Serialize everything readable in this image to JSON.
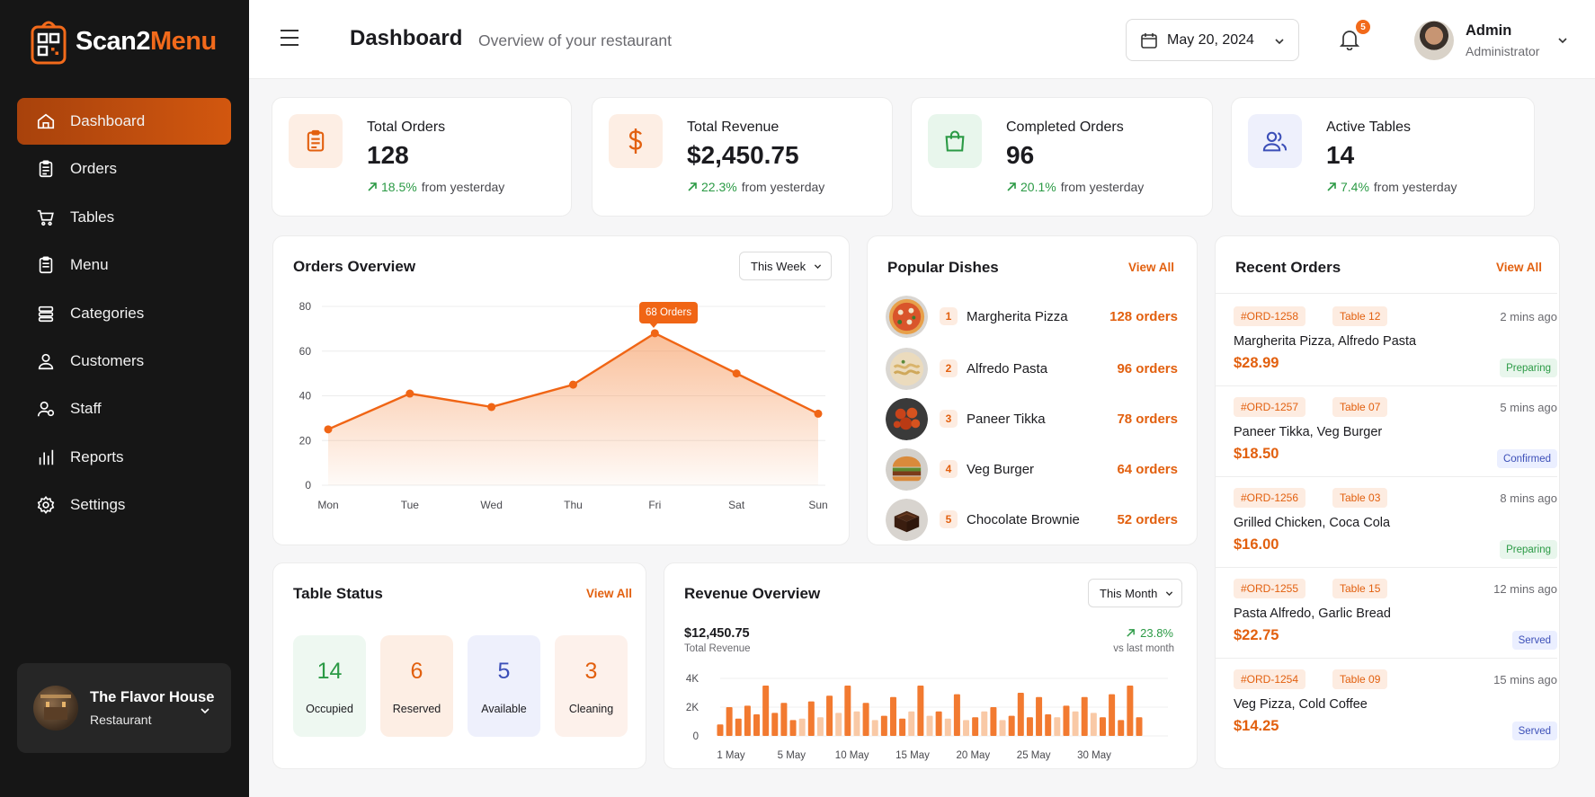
{
  "brand": {
    "name_a": "Scan2",
    "name_b": "Menu"
  },
  "sidebar": {
    "items": [
      {
        "label": "Dashboard",
        "icon": "home-icon",
        "active": true
      },
      {
        "label": "Orders",
        "icon": "clipboard-icon"
      },
      {
        "label": "Tables",
        "icon": "cart-icon"
      },
      {
        "label": "Menu",
        "icon": "menu-list-icon"
      },
      {
        "label": "Categories",
        "icon": "layers-icon"
      },
      {
        "label": "Customers",
        "icon": "user-icon"
      },
      {
        "label": "Staff",
        "icon": "staff-icon"
      },
      {
        "label": "Reports",
        "icon": "bar-chart-icon"
      },
      {
        "label": "Settings",
        "icon": "gear-icon"
      }
    ],
    "restaurant": {
      "name": "The Flavor House",
      "type": "Restaurant"
    }
  },
  "header": {
    "title": "Dashboard",
    "subtitle": "Overview of your restaurant",
    "date": "May 20, 2024",
    "notifications": "5",
    "user_name": "Admin",
    "user_role": "Administrator"
  },
  "stats": [
    {
      "label": "Total Orders",
      "value": "128",
      "change": "18.5%",
      "suffix": "from yesterday",
      "icon": "clipboard-icon",
      "icon_bg": "#fdeee4",
      "icon_color": "#e2600f"
    },
    {
      "label": "Total Revenue",
      "value": "$2,450.75",
      "change": "22.3%",
      "suffix": "from yesterday",
      "icon": "dollar-icon",
      "icon_bg": "#fdeee4",
      "icon_color": "#e2600f"
    },
    {
      "label": "Completed Orders",
      "value": "96",
      "change": "20.1%",
      "suffix": "from yesterday",
      "icon": "shopping-bag-icon",
      "icon_bg": "#e8f6ec",
      "icon_color": "#2b9a45"
    },
    {
      "label": "Active Tables",
      "value": "14",
      "change": "7.4%",
      "suffix": "from yesterday",
      "icon": "users-icon",
      "icon_bg": "#eef0fc",
      "icon_color": "#3c4fb8"
    }
  ],
  "orders_overview": {
    "title": "Orders Overview",
    "filter": "This Week",
    "tooltip": "68 Orders"
  },
  "popular_dishes": {
    "title": "Popular Dishes",
    "view_all": "View All",
    "items": [
      {
        "rank": "1",
        "name": "Margherita Pizza",
        "orders": "128 orders"
      },
      {
        "rank": "2",
        "name": "Alfredo Pasta",
        "orders": "96 orders"
      },
      {
        "rank": "3",
        "name": "Paneer Tikka",
        "orders": "78 orders"
      },
      {
        "rank": "4",
        "name": "Veg Burger",
        "orders": "64 orders"
      },
      {
        "rank": "5",
        "name": "Chocolate Brownie",
        "orders": "52 orders"
      }
    ]
  },
  "recent_orders": {
    "title": "Recent Orders",
    "view_all": "View All",
    "items": [
      {
        "id": "#ORD-1258",
        "table": "Table 12",
        "time": "2 mins ago",
        "items": "Margherita Pizza, Alfredo Pasta",
        "price": "$28.99",
        "status": "Preparing"
      },
      {
        "id": "#ORD-1257",
        "table": "Table 07",
        "time": "5 mins ago",
        "items": "Paneer Tikka, Veg Burger",
        "price": "$18.50",
        "status": "Confirmed"
      },
      {
        "id": "#ORD-1256",
        "table": "Table 03",
        "time": "8 mins ago",
        "items": "Grilled Chicken, Coca Cola",
        "price": "$16.00",
        "status": "Preparing"
      },
      {
        "id": "#ORD-1255",
        "table": "Table 15",
        "time": "12 mins ago",
        "items": "Pasta Alfredo, Garlic Bread",
        "price": "$22.75",
        "status": "Served"
      },
      {
        "id": "#ORD-1254",
        "table": "Table 09",
        "time": "15 mins ago",
        "items": "Veg Pizza, Cold Coffee",
        "price": "$14.25",
        "status": "Served"
      }
    ]
  },
  "table_status": {
    "title": "Table Status",
    "view_all": "View All",
    "items": [
      {
        "count": "14",
        "label": "Occupied",
        "color": "#2b9a45",
        "bg": "#eef8f1"
      },
      {
        "count": "6",
        "label": "Reserved",
        "color": "#e2600f",
        "bg": "#fdeee4"
      },
      {
        "count": "5",
        "label": "Available",
        "color": "#3c4fb8",
        "bg": "#eef0fc"
      },
      {
        "count": "3",
        "label": "Cleaning",
        "color": "#e2600f",
        "bg": "#fdf1eb"
      }
    ]
  },
  "revenue_overview": {
    "title": "Revenue Overview",
    "filter": "This Month",
    "total": "$12,450.75",
    "total_label": "Total Revenue",
    "change": "23.8%",
    "change_label": "vs last month"
  },
  "chart_data": [
    {
      "type": "area",
      "categories": [
        "Mon",
        "Tue",
        "Wed",
        "Thu",
        "Fri",
        "Sat",
        "Sun"
      ],
      "values": [
        25,
        41,
        35,
        45,
        68,
        50,
        32
      ],
      "ylim": [
        0,
        80
      ],
      "yticks": [
        0,
        20,
        40,
        60,
        80
      ],
      "grid": true
    },
    {
      "type": "bar",
      "xtick_labels": [
        "1 May",
        "5 May",
        "10 May",
        "15 May",
        "20 May",
        "25 May",
        "30 May"
      ],
      "ytick_labels": [
        "0",
        "2K",
        "4K"
      ],
      "ylim": [
        0,
        4000
      ],
      "values": [
        800,
        2000,
        1200,
        2100,
        1500,
        3500,
        1600,
        2300,
        1100,
        1200,
        2400,
        1300,
        2800,
        1600,
        3500,
        1700,
        2300,
        1100,
        1400,
        2700,
        1200,
        1700,
        3500,
        1400,
        1700,
        1200,
        2900,
        1100,
        1300,
        1700,
        2000,
        1100,
        1400,
        3000,
        1300,
        2700,
        1500,
        1300,
        2100,
        1700,
        2700,
        1600,
        1300,
        2900,
        1100,
        3500,
        1300
      ],
      "grid": true
    }
  ]
}
